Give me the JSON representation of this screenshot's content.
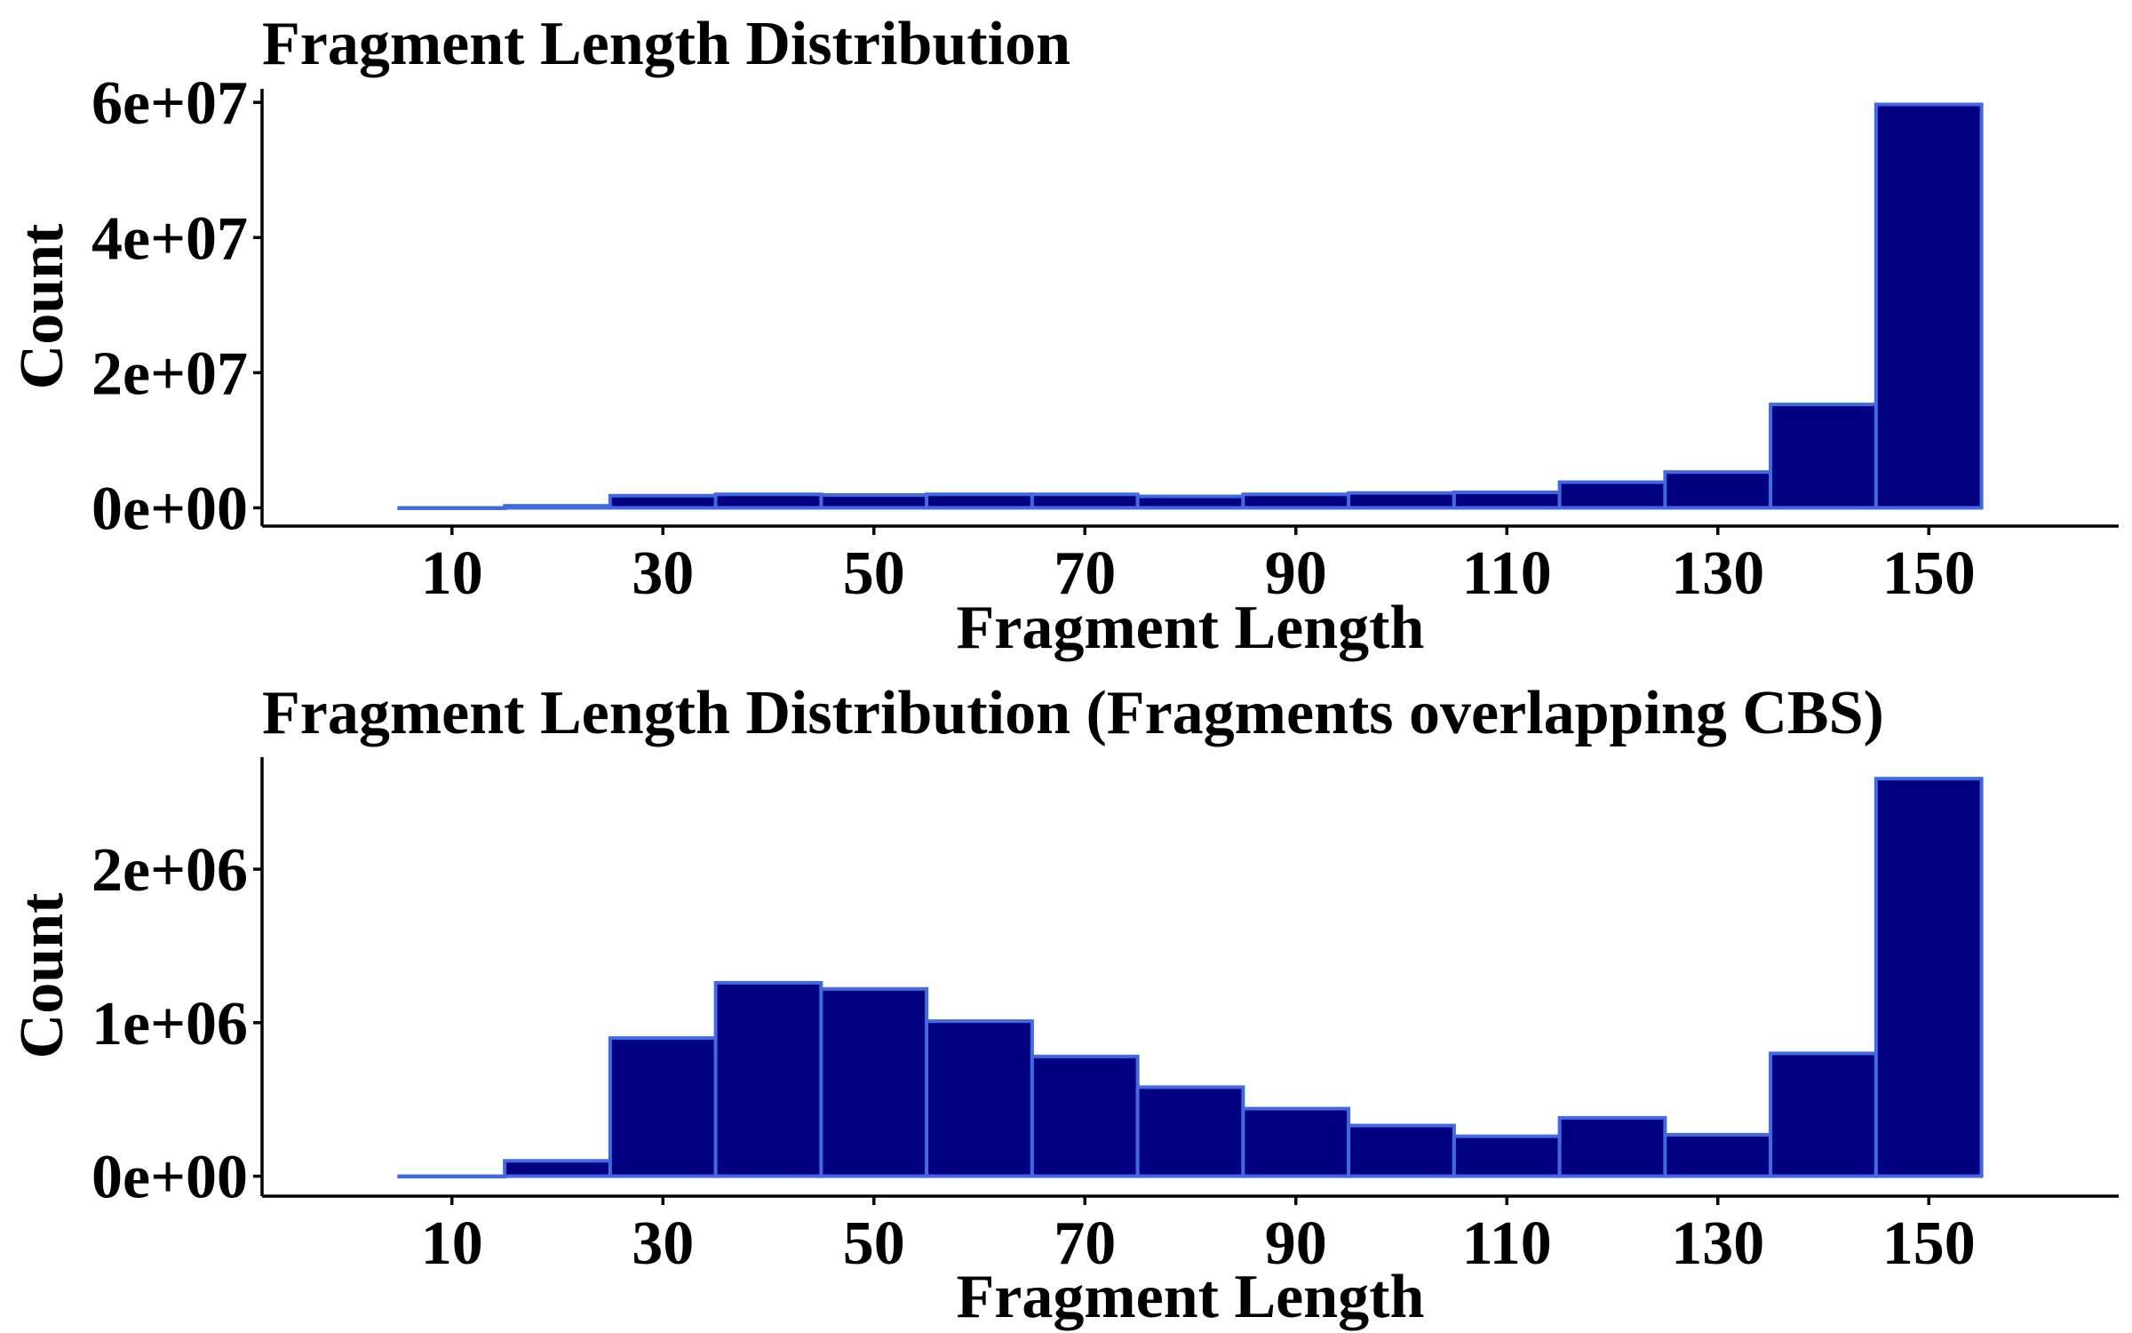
{
  "chart_data": [
    {
      "type": "bar",
      "title": "Fragment Length Distribution",
      "xlabel": "Fragment Length",
      "ylabel": "Count",
      "bin_width": 10,
      "x": [
        10,
        20,
        30,
        40,
        50,
        60,
        70,
        80,
        90,
        100,
        110,
        120,
        130,
        140,
        150
      ],
      "values": [
        0,
        300000,
        1800000,
        2000000,
        1900000,
        2000000,
        2000000,
        1700000,
        2000000,
        2200000,
        2300000,
        3800000,
        5300000,
        15300000,
        59700000
      ],
      "xticks": [
        10,
        30,
        50,
        70,
        90,
        110,
        130,
        150
      ],
      "xtick_labels": [
        "10",
        "30",
        "50",
        "70",
        "90",
        "110",
        "130",
        "150"
      ],
      "yticks": [
        0,
        20000000,
        40000000,
        60000000
      ],
      "ytick_labels": [
        "0e+00",
        "2e+07",
        "4e+07",
        "6e+07"
      ],
      "xlim": [
        -8,
        168
      ],
      "ylim": [
        -2700000,
        62000000
      ],
      "grid": false,
      "legend": "none",
      "fill_color": "#000080",
      "edge_color": "#4169E1"
    },
    {
      "type": "bar",
      "title": "Fragment Length Distribution (Fragments overlapping CBS)",
      "xlabel": "Fragment Length",
      "ylabel": "Count",
      "bin_width": 10,
      "x": [
        10,
        20,
        30,
        40,
        50,
        60,
        70,
        80,
        90,
        100,
        110,
        120,
        130,
        140,
        150
      ],
      "values": [
        0,
        100000,
        900000,
        1260000,
        1220000,
        1010000,
        780000,
        580000,
        440000,
        330000,
        260000,
        380000,
        270000,
        800000,
        2590000
      ],
      "xticks": [
        10,
        30,
        50,
        70,
        90,
        110,
        130,
        150
      ],
      "xtick_labels": [
        "10",
        "30",
        "50",
        "70",
        "90",
        "110",
        "130",
        "150"
      ],
      "yticks": [
        0,
        1000000,
        2000000
      ],
      "ytick_labels": [
        "0e+00",
        "1e+06",
        "2e+06"
      ],
      "xlim": [
        -8,
        168
      ],
      "ylim": [
        -130000,
        2730000
      ],
      "grid": false,
      "legend": "none",
      "fill_color": "#000080",
      "edge_color": "#4169E1"
    }
  ]
}
